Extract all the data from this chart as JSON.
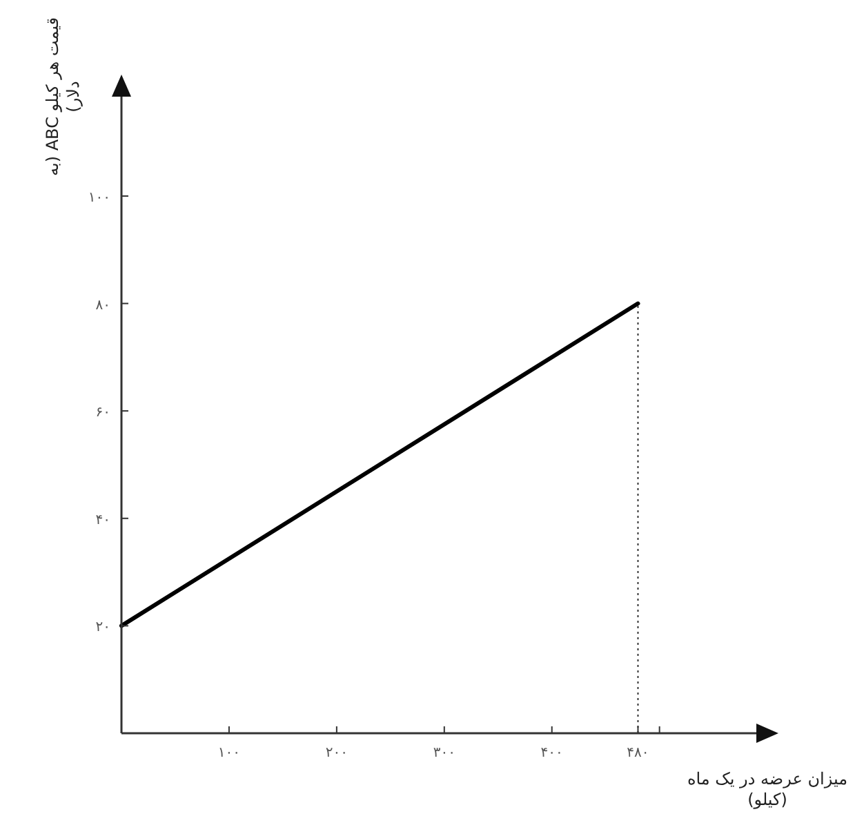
{
  "chart_data": {
    "type": "line",
    "xlabel": "میزان عرضه در یک ماه (کیلو)",
    "ylabel": "قیمت هر کیلو ABC (به دلار)",
    "x": [
      0,
      480
    ],
    "series": [
      {
        "color": "#000000",
        "values": [
          20,
          80
        ]
      }
    ],
    "xlim": [
      0,
      590
    ],
    "ylim": [
      0,
      118.5
    ],
    "xticks": [
      {
        "value": 100,
        "label": "۱۰۰"
      },
      {
        "value": 200,
        "label": "۲۰۰"
      },
      {
        "value": 300,
        "label": "۳۰۰"
      },
      {
        "value": 400,
        "label": "۴۰۰"
      },
      {
        "value": 480,
        "label": "۴۸۰"
      },
      {
        "value": 500,
        "label": null
      }
    ],
    "yticks": [
      {
        "value": 20,
        "label": "۲۰"
      },
      {
        "value": 40,
        "label": "۴۰"
      },
      {
        "value": 60,
        "label": "۶۰"
      },
      {
        "value": 80,
        "label": "۸۰"
      },
      {
        "value": 100,
        "label": "۱۰۰"
      }
    ],
    "ref_lines": [
      {
        "axis": "x",
        "value": 480,
        "line_style": "dotted"
      }
    ],
    "grid": false,
    "marker": "none",
    "line_style": "solid"
  }
}
